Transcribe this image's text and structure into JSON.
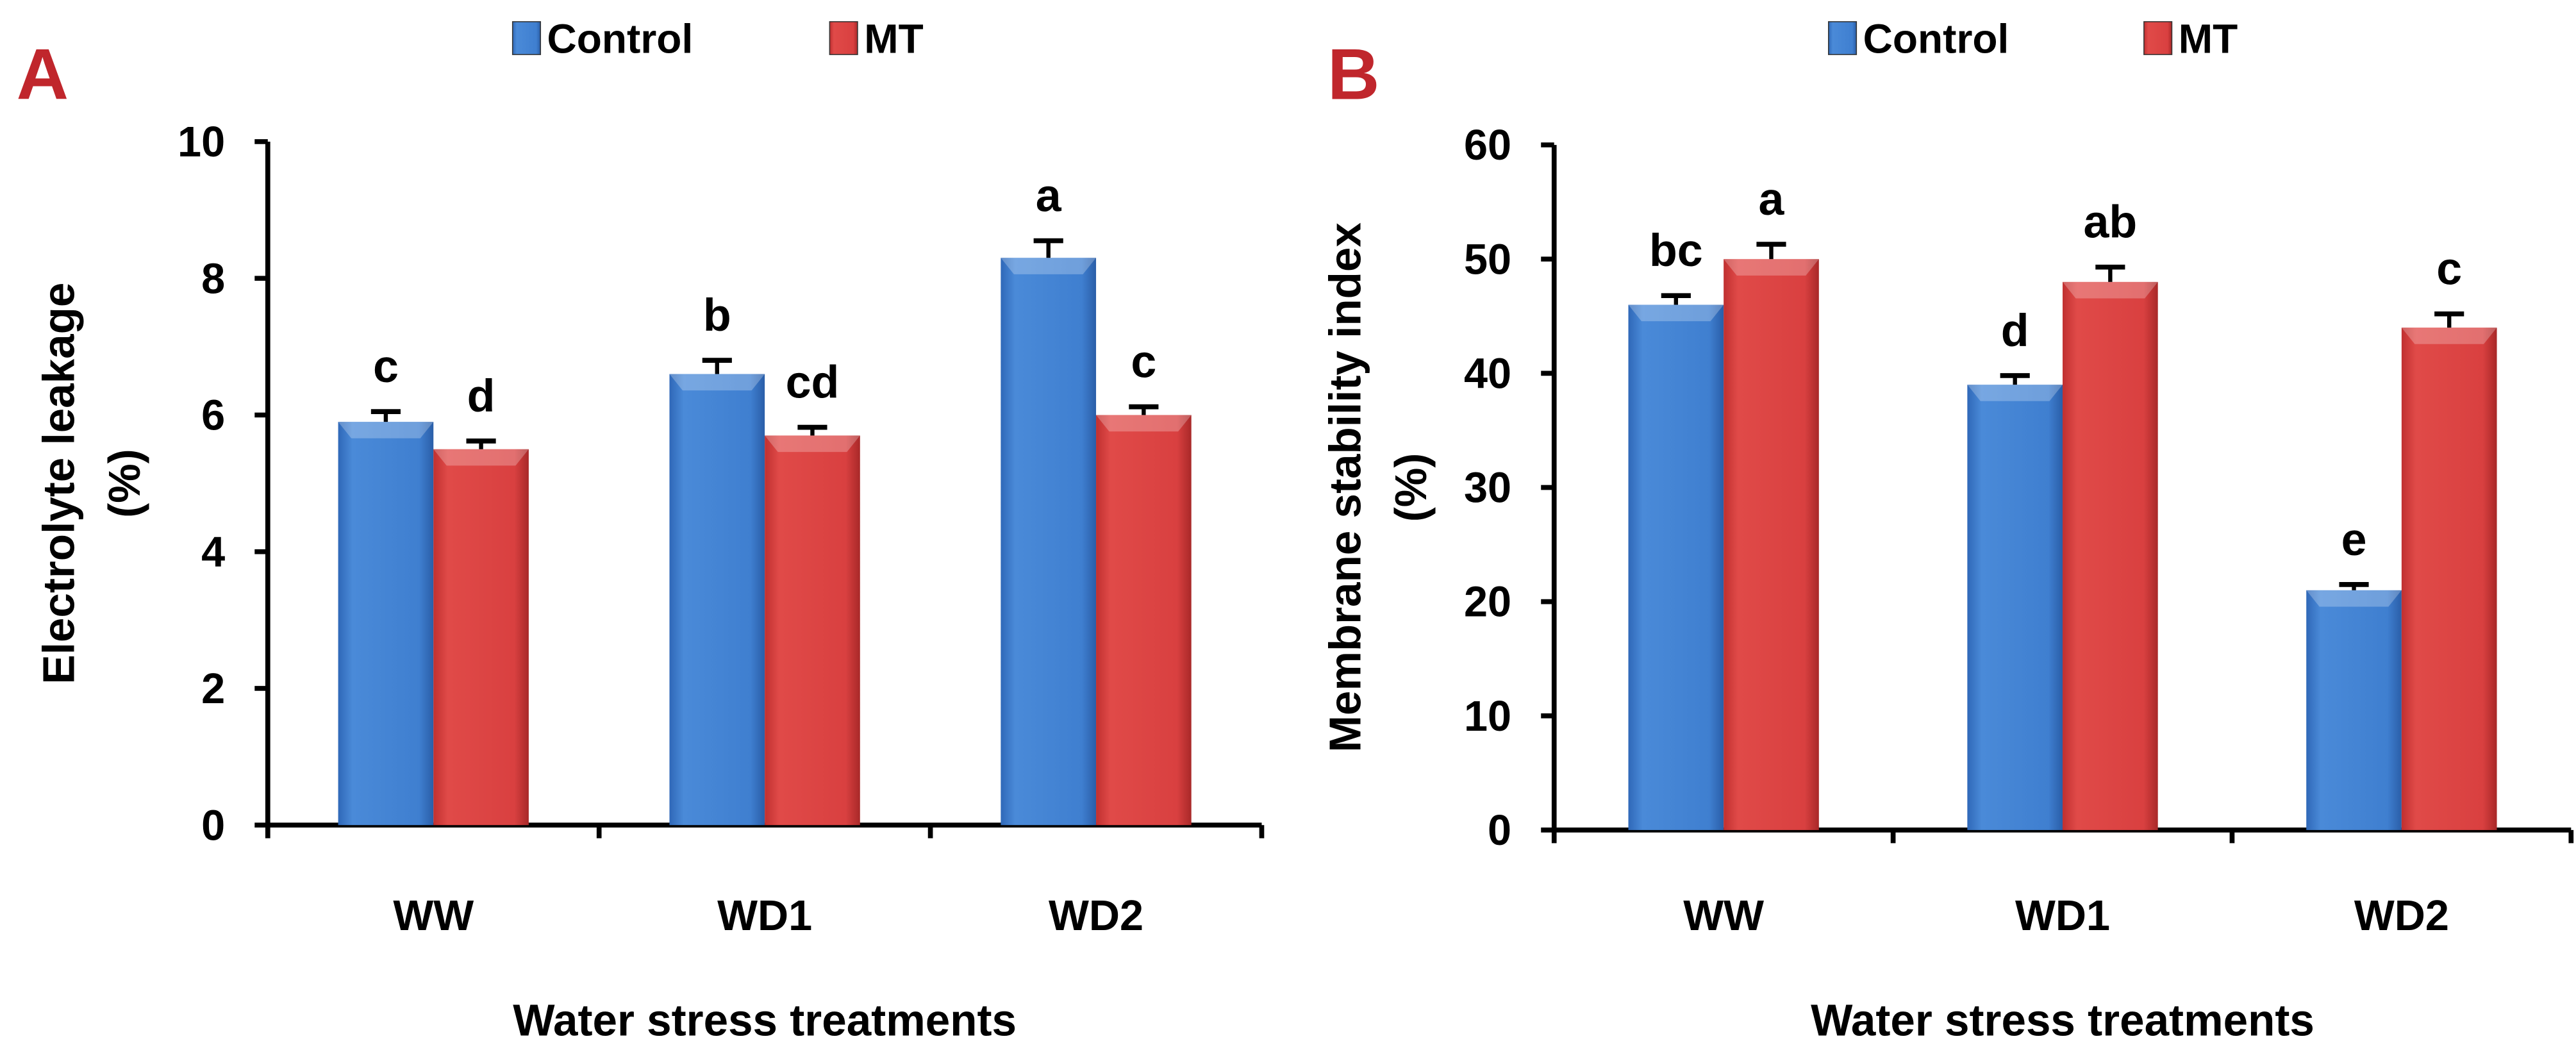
{
  "colors": {
    "control": "#3f7fd0",
    "mt": "#d94040",
    "panel_letter": "#c0262c"
  },
  "chart_data": [
    {
      "type": "bar",
      "panel_label": "A",
      "legend": [
        "Control",
        "MT"
      ],
      "legend_placement": "top",
      "categories": [
        "WW",
        "WD1",
        "WD2"
      ],
      "series": [
        {
          "name": "Control",
          "values": [
            5.9,
            6.6,
            8.3
          ],
          "errors": [
            0.15,
            0.2,
            0.25
          ],
          "letters": [
            "c",
            "b",
            "a"
          ]
        },
        {
          "name": "MT",
          "values": [
            5.5,
            5.7,
            6.0
          ],
          "errors": [
            0.12,
            0.12,
            0.12
          ],
          "letters": [
            "d",
            "cd",
            "c"
          ]
        }
      ],
      "xlabel": "Water stress treatments",
      "ylabel": [
        "Electrolyte leakage",
        "(%)"
      ],
      "ylim": [
        0,
        10
      ],
      "yticks": [
        "0",
        "2",
        "4",
        "6",
        "8",
        "10"
      ],
      "grid": false
    },
    {
      "type": "bar",
      "panel_label": "B",
      "legend": [
        "Control",
        "MT"
      ],
      "legend_placement": "top",
      "categories": [
        "WW",
        "WD1",
        "WD2"
      ],
      "series": [
        {
          "name": "Control",
          "values": [
            46,
            39,
            21
          ],
          "errors": [
            0.8,
            0.8,
            0.5
          ],
          "letters": [
            "bc",
            "d",
            "e"
          ]
        },
        {
          "name": "MT",
          "values": [
            50,
            48,
            44
          ],
          "errors": [
            1.3,
            1.3,
            1.2
          ],
          "letters": [
            "a",
            "ab",
            "c"
          ]
        }
      ],
      "xlabel": "Water stress treatments",
      "ylabel": [
        "Membrane stability index",
        "(%)"
      ],
      "ylim": [
        0,
        60
      ],
      "yticks": [
        "0",
        "10",
        "20",
        "30",
        "40",
        "50",
        "60"
      ],
      "grid": false
    }
  ]
}
